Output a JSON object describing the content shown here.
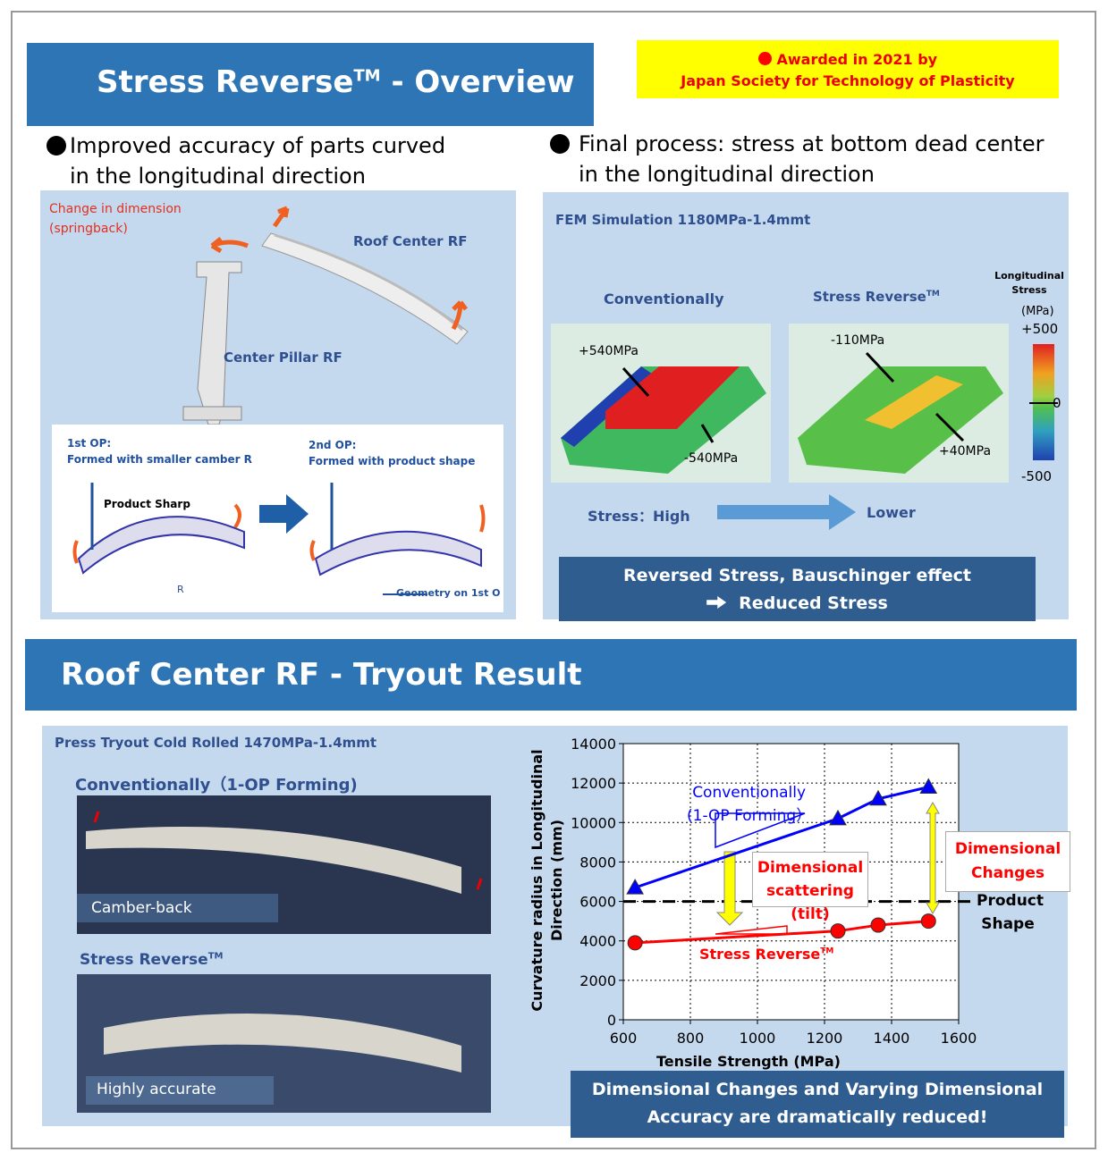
{
  "header": {
    "title": "Stress Reverse",
    "title_sup": "TM",
    "title_suffix": " - Overview"
  },
  "award": {
    "line1": "Awarded in 2021 by",
    "line2": "Japan Society for Technology of Plasticity"
  },
  "left": {
    "bullet": "Improved accuracy of parts curved in the longitudinal direction",
    "change_label": "Change in dimension",
    "change_sub": "(springback)",
    "roof_label": "Roof Center RF",
    "pillar_label": "Center Pillar RF",
    "op1_title": "1st OP:",
    "op1_desc": "Formed with smaller camber R",
    "op2_title": "2nd OP:",
    "op2_desc": "Formed with product shape",
    "product_sharp": "Product Sharp",
    "geometry_label": "Geometry on 1st O",
    "radius_label": "R"
  },
  "right": {
    "bullet": "Final process: stress at bottom dead center in the longitudinal direction",
    "fem_title": "FEM Simulation   1180MPa-1.4mmt",
    "conv_label": "Conventionally",
    "sr_label": "Stress Reverse",
    "sr_sup": "TM",
    "conv_high": "+540MPa",
    "conv_low": "-540MPa",
    "sr_low": "-110MPa",
    "sr_high": "+40MPa",
    "colorbar_title": "Longitudinal Stress",
    "colorbar_unit": "(MPa)",
    "colorbar_max": "+500",
    "colorbar_mid": "0",
    "colorbar_min": "-500",
    "stress_high": "Stress：High",
    "stress_lower": "Lower",
    "box_line1": "Reversed Stress, Bauschinger effect",
    "box_line2": "Reduced Stress"
  },
  "section2": {
    "title": "Roof Center RF - Tryout Result"
  },
  "tryout": {
    "title": "Press Tryout   Cold Rolled 1470MPa-1.4mmt",
    "conv_label": "Conventionally（1-OP Forming)",
    "camber_label": "Camber-back",
    "sr_label": "Stress Reverse",
    "sr_sup": "TM",
    "accurate_label": "Highly accurate",
    "conclusion": "Dimensional Changes and Varying Dimensional Accuracy are dramatically reduced!"
  },
  "chart_data": {
    "type": "scatter",
    "x_label": "Tensile Strength (MPa)",
    "y_label": "Curvature radius in Longitudinal Direction (mm)",
    "xlim": [
      600,
      1600
    ],
    "xticks": [
      600,
      800,
      1000,
      1200,
      1400,
      1600
    ],
    "ylim": [
      0,
      14000
    ],
    "yticks": [
      0,
      2000,
      4000,
      6000,
      8000,
      10000,
      12000,
      14000
    ],
    "grid": true,
    "series": [
      {
        "name": "Conventionally",
        "color": "#0000ff",
        "marker": "triangle",
        "x": [
          635,
          1240,
          1360,
          1510
        ],
        "values": [
          6700,
          10200,
          11200,
          11800
        ]
      },
      {
        "name": "Stress Reverse",
        "color": "#ff0000",
        "marker": "circle",
        "x": [
          635,
          1240,
          1360,
          1510
        ],
        "values": [
          3900,
          4500,
          4800,
          5000
        ]
      }
    ],
    "reference_line": {
      "value": 6000,
      "label": "Product Shape"
    },
    "annotations": {
      "conv_sub": "(1-OP Forming）",
      "sr_sup": "TM",
      "scatter": "Dimensional scattering (tilt)",
      "changes": "Dimensional Changes"
    }
  }
}
